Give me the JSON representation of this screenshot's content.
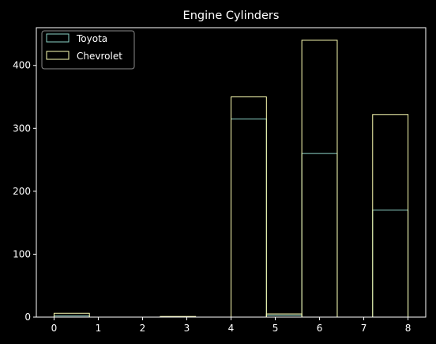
{
  "chart_data": {
    "type": "bar",
    "title": "Engine Cylinders",
    "xlabel": "",
    "ylabel": "",
    "xlim": [
      -0.4,
      8.4
    ],
    "ylim": [
      0,
      460
    ],
    "x_ticks": [
      0,
      1,
      2,
      3,
      4,
      5,
      6,
      7,
      8
    ],
    "y_ticks": [
      0,
      100,
      200,
      300,
      400
    ],
    "bin_edges": [
      0,
      0.8,
      1.6,
      2.4,
      3.2,
      4.0,
      4.8,
      5.6,
      6.4,
      7.2,
      8.0
    ],
    "histtype": "step",
    "overlaid": true,
    "legend_position": "top-left",
    "grid": false,
    "series": [
      {
        "name": "Toyota",
        "color": "#8dd3c7",
        "values": [
          2,
          0,
          0,
          0,
          0,
          315,
          3,
          260,
          0,
          170
        ]
      },
      {
        "name": "Chevrolet",
        "color": "#feffb3",
        "values": [
          6,
          0,
          0,
          1,
          0,
          350,
          5,
          440,
          0,
          322
        ]
      }
    ]
  }
}
